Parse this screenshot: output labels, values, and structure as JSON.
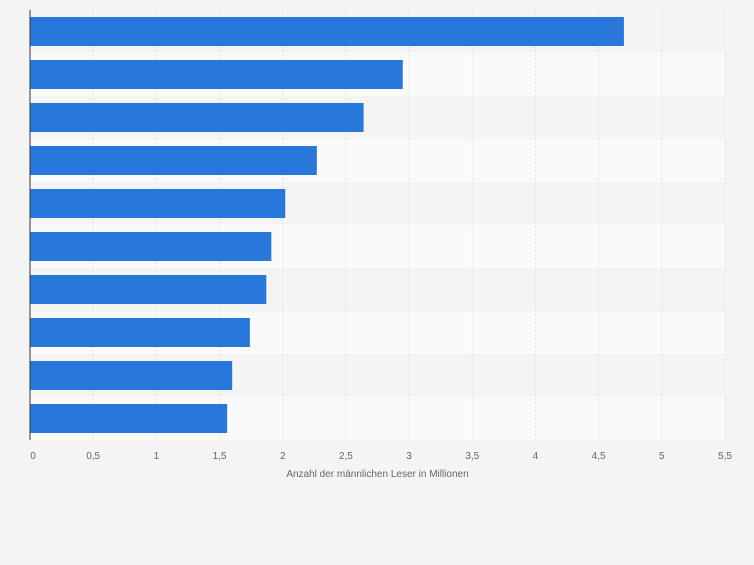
{
  "chart_data": {
    "type": "bar",
    "orientation": "horizontal",
    "categories": [
      "",
      "",
      "",
      "",
      "",
      "",
      "",
      "",
      "",
      ""
    ],
    "values": [
      4.7,
      2.95,
      2.64,
      2.27,
      2.02,
      1.91,
      1.87,
      1.74,
      1.6,
      1.56
    ],
    "xlabel": "Anzahl der männlichen Leser in Millionen",
    "xlim": [
      0,
      5.5
    ],
    "xticks": [
      0,
      0.5,
      1,
      1.5,
      2,
      2.5,
      3,
      3.5,
      4,
      4.5,
      5,
      5.5
    ],
    "xtick_labels": [
      "0",
      "0,5",
      "1",
      "1,5",
      "2",
      "2,5",
      "3",
      "3,5",
      "4",
      "4,5",
      "5",
      "5,5"
    ],
    "grid": true,
    "legend": "none",
    "bar_color": "#2878dc",
    "band_colors": [
      "#f4f4f4",
      "#fafafa"
    ]
  }
}
